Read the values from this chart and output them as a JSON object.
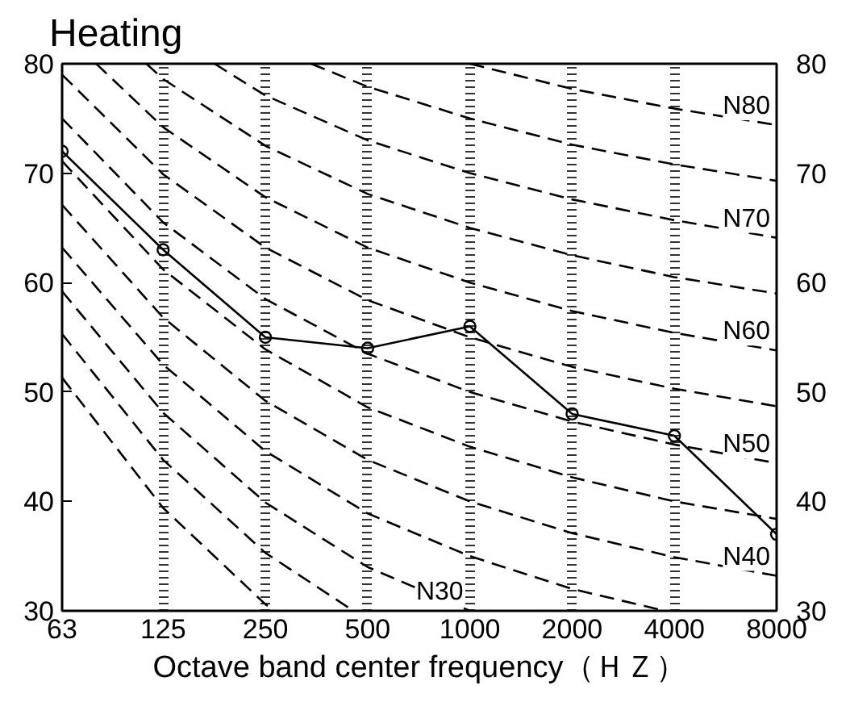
{
  "chart_data": {
    "type": "line",
    "title": "Heating",
    "xlabel": "Octave band center frequency（ＨＺ）",
    "log": "x",
    "grid": "x",
    "xlim": [
      63,
      8000
    ],
    "xticks": [
      63,
      125,
      250,
      500,
      1000,
      2000,
      4000,
      8000
    ],
    "ylim": [
      30,
      80
    ],
    "yticks": [
      30,
      40,
      50,
      60,
      70,
      80
    ],
    "y2lim": [
      30,
      80
    ],
    "y2ticks": [
      30,
      40,
      50,
      60,
      70,
      80
    ],
    "series": [
      {
        "color": "#000000",
        "marker": "circle",
        "line_style": "solid",
        "x": [
          63,
          125,
          250,
          500,
          1000,
          2000,
          4000,
          8000
        ],
        "values": [
          72,
          63,
          55,
          54,
          56,
          48,
          46,
          37
        ]
      },
      {
        "color": "#000000",
        "marker": "none",
        "line_style": "dashed",
        "x": [
          63,
          125,
          250,
          267
        ],
        "values": [
          51.3,
          39.4,
          30.6,
          30
        ]
      },
      {
        "color": "#000000",
        "marker": "none",
        "line_style": "dashed",
        "x": [
          63,
          125,
          250,
          454
        ],
        "values": [
          55.3,
          43.8,
          35.3,
          30
        ]
      },
      {
        "color": "#000000",
        "marker": "none",
        "line_style": "dashed",
        "name": "N30",
        "x": [
          63,
          125,
          250,
          500,
          1000
        ],
        "values": [
          59.2,
          48.1,
          39.9,
          34.0,
          30
        ]
      },
      {
        "color": "#000000",
        "marker": "none",
        "line_style": "dashed",
        "x": [
          63,
          125,
          250,
          500,
          1000,
          2000,
          3757
        ],
        "values": [
          63.2,
          52.5,
          44.6,
          38.9,
          35,
          32.0,
          30
        ]
      },
      {
        "color": "#000000",
        "marker": "none",
        "line_style": "dashed",
        "x": [
          63,
          125,
          250,
          500,
          1000,
          2000,
          4000,
          8000
        ],
        "name": "N40",
        "values": [
          67.1,
          56.8,
          49.2,
          43.8,
          40,
          37.1,
          34.9,
          33.2
        ]
      },
      {
        "color": "#000000",
        "marker": "none",
        "line_style": "dashed",
        "x": [
          63,
          125,
          250,
          500,
          1000,
          2000,
          4000,
          8000
        ],
        "values": [
          71.1,
          61.2,
          53.9,
          48.6,
          45,
          42.2,
          40.0,
          38.4
        ]
      },
      {
        "color": "#000000",
        "marker": "none",
        "line_style": "dashed",
        "x": [
          63,
          125,
          250,
          500,
          1000,
          2000,
          4000,
          8000
        ],
        "name": "N50",
        "values": [
          75.0,
          65.5,
          58.5,
          53.5,
          50,
          47.3,
          45.2,
          43.5
        ]
      },
      {
        "color": "#000000",
        "marker": "none",
        "line_style": "dashed",
        "x": [
          63,
          125,
          250,
          500,
          1000,
          2000,
          4000,
          8000
        ],
        "values": [
          79.0,
          69.9,
          63.2,
          58.4,
          55,
          52.3,
          50.3,
          48.7
        ]
      },
      {
        "color": "#000000",
        "marker": "none",
        "line_style": "dashed",
        "name": "N60",
        "x": [
          79.4,
          125,
          250,
          500,
          1000,
          2000,
          4000,
          8000
        ],
        "values": [
          80,
          74.2,
          67.8,
          63.2,
          60,
          57.4,
          55.4,
          53.8
        ]
      },
      {
        "color": "#000000",
        "marker": "none",
        "line_style": "dashed",
        "x": [
          111.6,
          125,
          250,
          500,
          1000,
          2000,
          4000,
          8000
        ],
        "values": [
          80,
          78.6,
          72.5,
          68.1,
          65,
          62.5,
          60.5,
          59.0
        ]
      },
      {
        "color": "#000000",
        "marker": "none",
        "line_style": "dashed",
        "name": "N70",
        "x": [
          177,
          250,
          500,
          1000,
          2000,
          4000,
          8000
        ],
        "values": [
          80,
          77.1,
          73.0,
          70,
          67.6,
          65.7,
          64.1
        ]
      },
      {
        "color": "#000000",
        "marker": "none",
        "line_style": "dashed",
        "x": [
          341,
          500,
          1000,
          2000,
          4000,
          8000
        ],
        "values": [
          80,
          77.9,
          75,
          72.6,
          70.8,
          69.3
        ]
      },
      {
        "color": "#000000",
        "marker": "none",
        "line_style": "dashed",
        "name": "N80",
        "x": [
          1000,
          2000,
          4000,
          8000
        ],
        "values": [
          80,
          77.7,
          75.9,
          74.4
        ]
      }
    ]
  }
}
